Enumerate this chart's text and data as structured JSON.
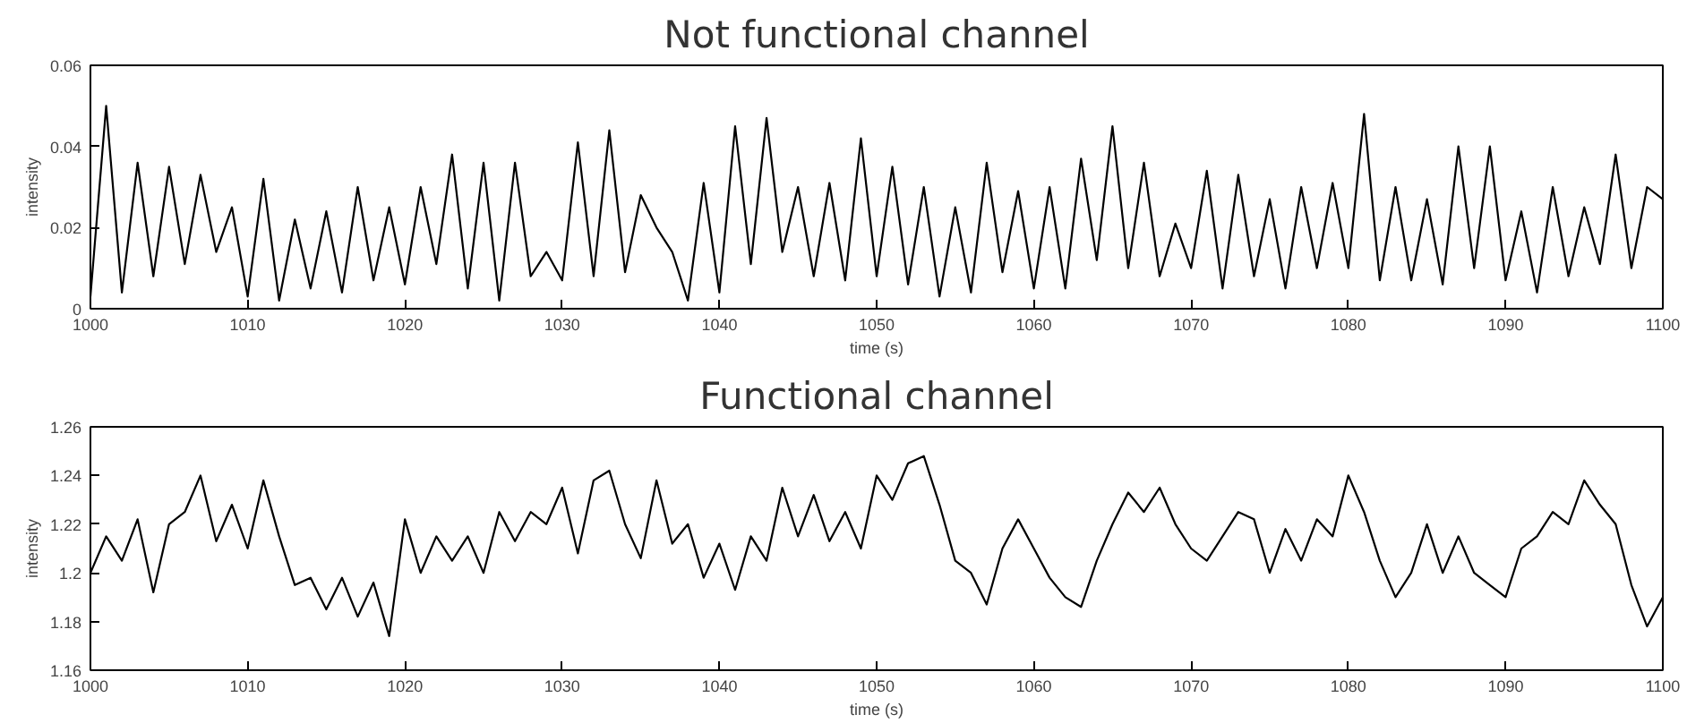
{
  "chart_data": [
    {
      "type": "line",
      "title": "Not functional channel",
      "xlabel": "time (s)",
      "ylabel": "intensity",
      "xlim": [
        1000,
        1100
      ],
      "xticks": [
        1000,
        1010,
        1020,
        1030,
        1040,
        1050,
        1060,
        1070,
        1080,
        1090,
        1100
      ],
      "ylim": [
        0,
        0.06
      ],
      "yticks": [
        0,
        0.02,
        0.04,
        0.06
      ],
      "grid": false,
      "x": [
        1000,
        1001,
        1002,
        1003,
        1004,
        1005,
        1006,
        1007,
        1008,
        1009,
        1010,
        1011,
        1012,
        1013,
        1014,
        1015,
        1016,
        1017,
        1018,
        1019,
        1020,
        1021,
        1022,
        1023,
        1024,
        1025,
        1026,
        1027,
        1028,
        1029,
        1030,
        1031,
        1032,
        1033,
        1034,
        1035,
        1036,
        1037,
        1038,
        1039,
        1040,
        1041,
        1042,
        1043,
        1044,
        1045,
        1046,
        1047,
        1048,
        1049,
        1050,
        1051,
        1052,
        1053,
        1054,
        1055,
        1056,
        1057,
        1058,
        1059,
        1060,
        1061,
        1062,
        1063,
        1064,
        1065,
        1066,
        1067,
        1068,
        1069,
        1070,
        1071,
        1072,
        1073,
        1074,
        1075,
        1076,
        1077,
        1078,
        1079,
        1080,
        1081,
        1082,
        1083,
        1084,
        1085,
        1086,
        1087,
        1088,
        1089,
        1090,
        1091,
        1092,
        1093,
        1094,
        1095,
        1096,
        1097,
        1098,
        1099,
        1100
      ],
      "series": [
        {
          "color": "#000000",
          "values": [
            0.003,
            0.05,
            0.004,
            0.036,
            0.008,
            0.035,
            0.011,
            0.033,
            0.014,
            0.025,
            0.003,
            0.032,
            0.002,
            0.022,
            0.005,
            0.024,
            0.004,
            0.03,
            0.007,
            0.025,
            0.006,
            0.03,
            0.011,
            0.038,
            0.005,
            0.036,
            0.002,
            0.036,
            0.008,
            0.014,
            0.007,
            0.041,
            0.008,
            0.044,
            0.009,
            0.028,
            0.02,
            0.014,
            0.002,
            0.031,
            0.004,
            0.045,
            0.011,
            0.047,
            0.014,
            0.03,
            0.008,
            0.031,
            0.007,
            0.042,
            0.008,
            0.035,
            0.006,
            0.03,
            0.003,
            0.025,
            0.004,
            0.036,
            0.009,
            0.029,
            0.005,
            0.03,
            0.005,
            0.037,
            0.012,
            0.045,
            0.01,
            0.036,
            0.008,
            0.021,
            0.01,
            0.034,
            0.005,
            0.033,
            0.008,
            0.027,
            0.005,
            0.03,
            0.01,
            0.031,
            0.01,
            0.048,
            0.007,
            0.03,
            0.007,
            0.027,
            0.006,
            0.04,
            0.01,
            0.04,
            0.007,
            0.024,
            0.004,
            0.03,
            0.008,
            0.025,
            0.011,
            0.038,
            0.01,
            0.03,
            0.027
          ]
        }
      ]
    },
    {
      "type": "line",
      "title": "Functional channel",
      "xlabel": "time (s)",
      "ylabel": "intensity",
      "xlim": [
        1000,
        1100
      ],
      "xticks": [
        1000,
        1010,
        1020,
        1030,
        1040,
        1050,
        1060,
        1070,
        1080,
        1090,
        1100
      ],
      "ylim": [
        1.16,
        1.26
      ],
      "yticks": [
        1.16,
        1.18,
        1.2,
        1.22,
        1.24,
        1.26
      ],
      "grid": false,
      "x": [
        1000,
        1001,
        1002,
        1003,
        1004,
        1005,
        1006,
        1007,
        1008,
        1009,
        1010,
        1011,
        1012,
        1013,
        1014,
        1015,
        1016,
        1017,
        1018,
        1019,
        1020,
        1021,
        1022,
        1023,
        1024,
        1025,
        1026,
        1027,
        1028,
        1029,
        1030,
        1031,
        1032,
        1033,
        1034,
        1035,
        1036,
        1037,
        1038,
        1039,
        1040,
        1041,
        1042,
        1043,
        1044,
        1045,
        1046,
        1047,
        1048,
        1049,
        1050,
        1051,
        1052,
        1053,
        1054,
        1055,
        1056,
        1057,
        1058,
        1059,
        1060,
        1061,
        1062,
        1063,
        1064,
        1065,
        1066,
        1067,
        1068,
        1069,
        1070,
        1071,
        1072,
        1073,
        1074,
        1075,
        1076,
        1077,
        1078,
        1079,
        1080,
        1081,
        1082,
        1083,
        1084,
        1085,
        1086,
        1087,
        1088,
        1089,
        1090,
        1091,
        1092,
        1093,
        1094,
        1095,
        1096,
        1097,
        1098,
        1099,
        1100
      ],
      "series": [
        {
          "color": "#000000",
          "values": [
            1.2,
            1.215,
            1.205,
            1.222,
            1.192,
            1.22,
            1.225,
            1.24,
            1.213,
            1.228,
            1.21,
            1.238,
            1.215,
            1.195,
            1.198,
            1.185,
            1.198,
            1.182,
            1.196,
            1.174,
            1.222,
            1.2,
            1.215,
            1.205,
            1.215,
            1.2,
            1.225,
            1.213,
            1.225,
            1.22,
            1.235,
            1.208,
            1.238,
            1.242,
            1.22,
            1.206,
            1.238,
            1.212,
            1.22,
            1.198,
            1.212,
            1.193,
            1.215,
            1.205,
            1.235,
            1.215,
            1.232,
            1.213,
            1.225,
            1.21,
            1.24,
            1.23,
            1.245,
            1.248,
            1.228,
            1.205,
            1.2,
            1.187,
            1.21,
            1.222,
            1.21,
            1.198,
            1.19,
            1.186,
            1.205,
            1.22,
            1.233,
            1.225,
            1.235,
            1.22,
            1.21,
            1.205,
            1.215,
            1.225,
            1.222,
            1.2,
            1.218,
            1.205,
            1.222,
            1.215,
            1.24,
            1.225,
            1.205,
            1.19,
            1.2,
            1.22,
            1.2,
            1.215,
            1.2,
            1.195,
            1.19,
            1.21,
            1.215,
            1.225,
            1.22,
            1.238,
            1.228,
            1.22,
            1.195,
            1.178,
            1.19
          ]
        }
      ]
    }
  ]
}
